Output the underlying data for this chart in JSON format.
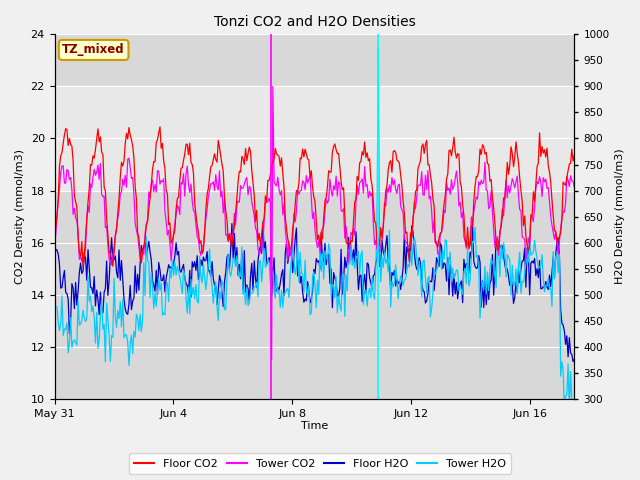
{
  "title": "Tonzi CO2 and H2O Densities",
  "xlabel": "Time",
  "ylabel_left": "CO2 Density (mmol/m3)",
  "ylabel_right": "H2O Density (mmol/m3)",
  "ylim_left": [
    10,
    24
  ],
  "ylim_right": [
    300,
    1000
  ],
  "yticks_left": [
    10,
    12,
    14,
    16,
    18,
    20,
    22,
    24
  ],
  "yticks_right": [
    300,
    350,
    400,
    450,
    500,
    550,
    600,
    650,
    700,
    750,
    800,
    850,
    900,
    950,
    1000
  ],
  "xtick_labels": [
    "May 31",
    "Jun 4",
    "Jun 8",
    "Jun 12",
    "Jun 16"
  ],
  "xtick_positions": [
    0,
    4,
    8,
    12,
    16
  ],
  "shade_ymin": 18.0,
  "shade_ymax": 22.0,
  "vline_magenta_x": 7.3,
  "vline_cyan_x": 10.9,
  "colors": {
    "floor_co2": "#ff0000",
    "tower_co2": "#ff00ff",
    "floor_h2o": "#0000cc",
    "tower_h2o": "#00ccff"
  },
  "legend_labels": [
    "Floor CO2",
    "Tower CO2",
    "Floor H2O",
    "Tower H2O"
  ],
  "tz_label": "TZ_mixed",
  "bg_color": "#d8d8d8",
  "fig_bg": "#f0f0f0",
  "shade_color": "#e8e8e8"
}
